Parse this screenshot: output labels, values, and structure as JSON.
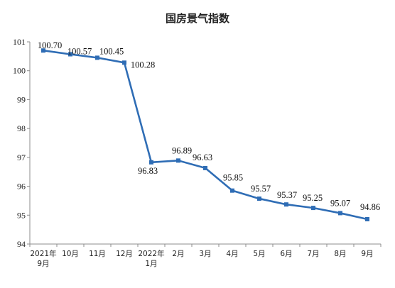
{
  "chart_data": {
    "type": "line",
    "title": "国房景气指数",
    "categories": [
      [
        "2021年",
        "9月"
      ],
      [
        "10月"
      ],
      [
        "11月"
      ],
      [
        "12月"
      ],
      [
        "2022年",
        "1月"
      ],
      [
        "2月"
      ],
      [
        "3月"
      ],
      [
        "4月"
      ],
      [
        "5月"
      ],
      [
        "6月"
      ],
      [
        "7月"
      ],
      [
        "8月"
      ],
      [
        "9月"
      ]
    ],
    "series": [
      {
        "values": [
          100.7,
          100.57,
          100.45,
          100.28,
          96.83,
          96.89,
          96.63,
          95.85,
          95.57,
          95.37,
          95.25,
          95.07,
          94.86
        ],
        "labels": [
          "100.70",
          "100.57",
          "100.45",
          "100.28",
          "96.83",
          "96.89",
          "96.63",
          "95.85",
          "95.57",
          "95.37",
          "95.25",
          "95.07",
          "94.86"
        ],
        "color": "#2f6db5"
      }
    ],
    "yticks": [
      "94",
      "95",
      "96",
      "97",
      "98",
      "99",
      "100",
      "101"
    ],
    "ylim": [
      94,
      101
    ],
    "grid": false
  }
}
